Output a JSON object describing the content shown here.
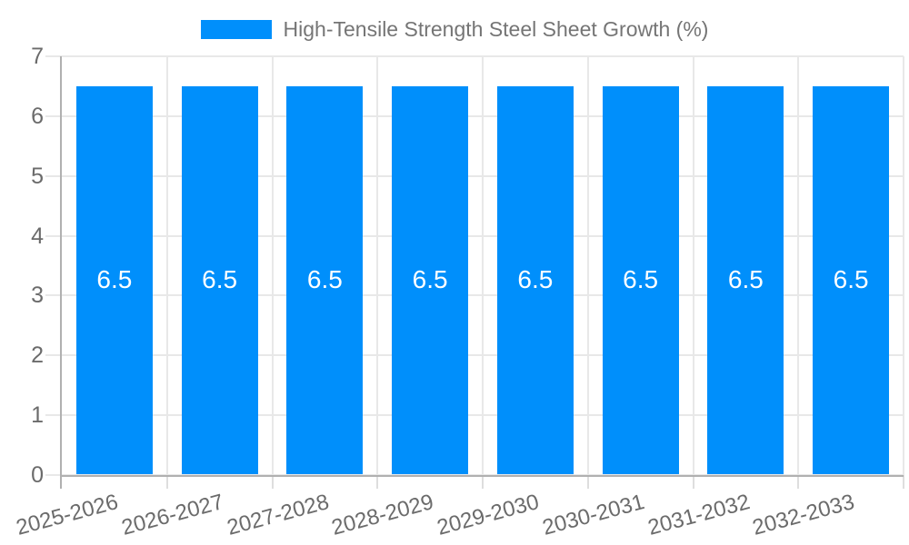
{
  "legend": {
    "label": "High-Tensile Strength Steel Sheet Growth (%)",
    "swatch_color": "#008FFB"
  },
  "chart_data": {
    "type": "bar",
    "title": "High-Tensile Strength Steel Sheet Growth (%)",
    "categories": [
      "2025-2026",
      "2026-2027",
      "2027-2028",
      "2028-2029",
      "2029-2030",
      "2030-2031",
      "2031-2032",
      "2032-2033"
    ],
    "series": [
      {
        "name": "High-Tensile Strength Steel Sheet Growth (%)",
        "values": [
          6.5,
          6.5,
          6.5,
          6.5,
          6.5,
          6.5,
          6.5,
          6.5
        ]
      }
    ],
    "bar_value_labels": [
      "6.5",
      "6.5",
      "6.5",
      "6.5",
      "6.5",
      "6.5",
      "6.5",
      "6.5"
    ],
    "xlabel": "",
    "ylabel": "",
    "y_ticks": [
      "0",
      "1",
      "2",
      "3",
      "4",
      "5",
      "6",
      "7"
    ],
    "ylim": [
      0,
      7
    ],
    "grid": true,
    "legend_position": "top"
  },
  "colors": {
    "bar": "#008FFB",
    "bar_value_text": "#ffffff",
    "grid": "#e8e8e8",
    "axis": "#b0b0b0",
    "minor_tick": "#dedede",
    "tick_text": "#6b6b6b",
    "legend_text": "#757575",
    "background": "#ffffff"
  }
}
